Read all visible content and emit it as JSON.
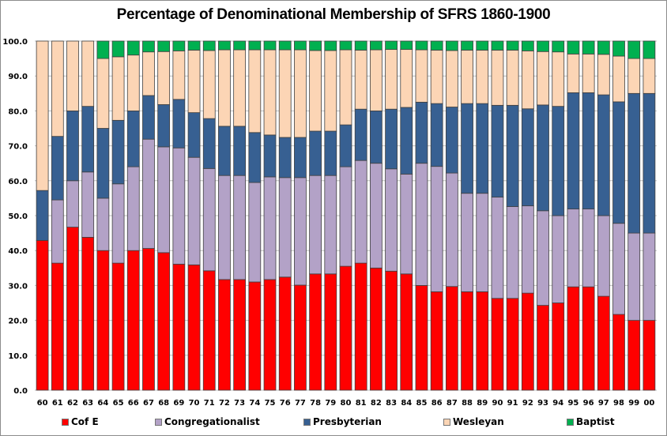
{
  "chart_data": {
    "type": "bar",
    "stacked": true,
    "title": "Percentage  of Denominational  Membership of SFRS 1860-1900",
    "xlabel": "",
    "ylabel": "",
    "ylim": [
      0,
      100
    ],
    "yticks": [
      "0.0",
      "10.0",
      "20.0",
      "30.0",
      "40.0",
      "50.0",
      "60.0",
      "70.0",
      "80.0",
      "90.0",
      "100.0"
    ],
    "grid": true,
    "legend_position": "bottom",
    "categories": [
      "60",
      "61",
      "62",
      "63",
      "64",
      "65",
      "66",
      "67",
      "68",
      "69",
      "70",
      "71",
      "72",
      "73",
      "74",
      "75",
      "76",
      "77",
      "78",
      "79",
      "80",
      "81",
      "82",
      "83",
      "84",
      "85",
      "86",
      "87",
      "88",
      "89",
      "90",
      "91",
      "92",
      "93",
      "94",
      "95",
      "96",
      "97",
      "98",
      "99",
      "00"
    ],
    "series": [
      {
        "name": "Cof E",
        "color": "#ff0000",
        "values": [
          42.9,
          36.4,
          46.7,
          43.8,
          40.0,
          36.4,
          40.0,
          40.6,
          39.4,
          36.1,
          35.9,
          34.2,
          31.7,
          31.7,
          31.0,
          31.7,
          32.4,
          30.1,
          33.3,
          33.3,
          35.5,
          36.4,
          35.0,
          34.1,
          33.3,
          30.0,
          28.2,
          29.7,
          28.2,
          28.2,
          26.3,
          26.3,
          27.8,
          24.3,
          25.0,
          29.6,
          29.6,
          26.9,
          21.7,
          20.0,
          20.0
        ]
      },
      {
        "name": "Congregationalist",
        "color": "#b3a2c7",
        "values": [
          0.0,
          18.1,
          13.3,
          18.7,
          15.0,
          22.7,
          24.0,
          31.3,
          30.3,
          33.3,
          30.8,
          29.3,
          29.8,
          29.8,
          28.5,
          29.4,
          28.5,
          30.8,
          28.2,
          28.2,
          28.5,
          29.4,
          30.0,
          29.3,
          28.6,
          35.0,
          35.9,
          32.5,
          28.2,
          28.2,
          29.0,
          26.3,
          25.0,
          27.1,
          25.0,
          22.3,
          22.3,
          23.1,
          26.1,
          25.0,
          25.0
        ]
      },
      {
        "name": "Presbyterian",
        "color": "#376092",
        "values": [
          14.3,
          18.2,
          20.0,
          18.8,
          20.0,
          18.2,
          16.0,
          12.5,
          12.1,
          13.9,
          12.8,
          14.3,
          14.1,
          14.1,
          14.3,
          12.0,
          11.5,
          11.5,
          12.7,
          12.7,
          12.0,
          14.7,
          15.0,
          17.1,
          19.1,
          17.5,
          18.0,
          18.9,
          25.7,
          25.7,
          26.3,
          29.0,
          27.8,
          30.3,
          31.3,
          33.3,
          33.3,
          34.6,
          34.8,
          40.0,
          40.0
        ]
      },
      {
        "name": "Wesleyan",
        "color": "#fcd5b5",
        "values": [
          42.8,
          27.3,
          20.0,
          18.7,
          20.0,
          18.2,
          16.0,
          12.5,
          15.2,
          13.9,
          17.9,
          19.5,
          21.9,
          21.9,
          23.7,
          24.4,
          25.1,
          25.1,
          23.1,
          23.1,
          21.5,
          16.9,
          17.5,
          17.1,
          16.6,
          15.0,
          15.3,
          16.2,
          15.3,
          15.3,
          15.8,
          15.8,
          16.6,
          15.3,
          15.6,
          11.1,
          11.1,
          11.6,
          13.1,
          10.0,
          10.0
        ]
      },
      {
        "name": "Baptist",
        "color": "#00b050",
        "values": [
          0.0,
          0.0,
          0.0,
          0.0,
          5.0,
          4.5,
          4.0,
          3.1,
          3.0,
          2.8,
          2.6,
          2.7,
          2.5,
          2.5,
          2.5,
          2.5,
          2.5,
          2.5,
          2.7,
          2.7,
          2.5,
          2.6,
          2.5,
          2.4,
          2.4,
          2.5,
          2.6,
          2.7,
          2.6,
          2.6,
          2.6,
          2.6,
          2.8,
          3.0,
          3.1,
          3.7,
          3.7,
          3.8,
          4.3,
          5.0,
          5.0
        ]
      }
    ]
  }
}
